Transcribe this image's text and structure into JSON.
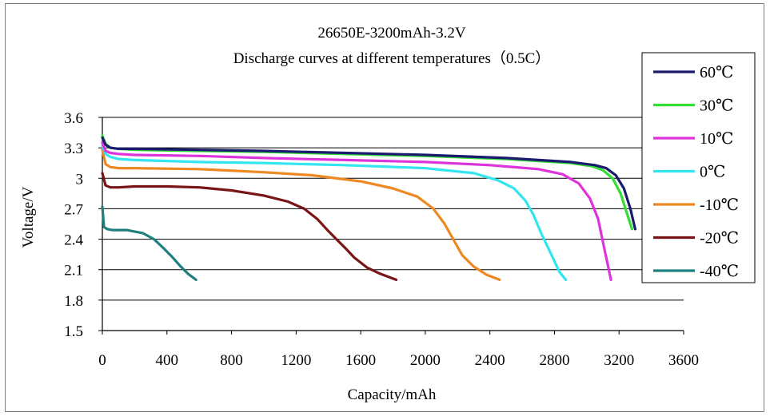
{
  "chart_data": {
    "type": "line",
    "title": "26650E-3200mAh-3.2V",
    "subtitle": "Discharge curves at different temperatures（0.5C）",
    "xlabel": "Capacity/mAh",
    "ylabel": "Voltage/V",
    "xlim": [
      0,
      3600
    ],
    "ylim": [
      1.5,
      3.6
    ],
    "xticks": [
      "0",
      "400",
      "800",
      "1200",
      "1600",
      "2000",
      "2400",
      "2800",
      "3200",
      "3600"
    ],
    "yticks": [
      "1.5",
      "1.8",
      "2.1",
      "2.4",
      "2.7",
      "3",
      "3.3",
      "3.6"
    ],
    "grid": "horizontal",
    "legend_position": "right",
    "series": [
      {
        "name": "60℃",
        "color": "#1a1a6e",
        "x": [
          0,
          20,
          50,
          100,
          200,
          600,
          1000,
          1500,
          2000,
          2500,
          2900,
          3050,
          3120,
          3180,
          3230,
          3270,
          3300
        ],
        "y": [
          3.4,
          3.33,
          3.3,
          3.29,
          3.29,
          3.28,
          3.27,
          3.25,
          3.23,
          3.2,
          3.16,
          3.13,
          3.1,
          3.03,
          2.9,
          2.7,
          2.5
        ]
      },
      {
        "name": "30℃",
        "color": "#33dd33",
        "x": [
          0,
          20,
          50,
          100,
          200,
          600,
          1000,
          1500,
          2000,
          2500,
          2900,
          3030,
          3100,
          3160,
          3210,
          3250,
          3280
        ],
        "y": [
          3.42,
          3.34,
          3.3,
          3.29,
          3.28,
          3.27,
          3.26,
          3.24,
          3.22,
          3.19,
          3.15,
          3.12,
          3.08,
          3.0,
          2.85,
          2.65,
          2.5
        ]
      },
      {
        "name": "10℃",
        "color": "#dd33dd",
        "x": [
          0,
          20,
          50,
          100,
          200,
          600,
          1000,
          1500,
          2000,
          2400,
          2700,
          2850,
          2950,
          3020,
          3070,
          3110,
          3150
        ],
        "y": [
          3.35,
          3.27,
          3.25,
          3.24,
          3.23,
          3.22,
          3.2,
          3.18,
          3.16,
          3.13,
          3.09,
          3.04,
          2.95,
          2.8,
          2.6,
          2.3,
          2.0
        ]
      },
      {
        "name": "0℃",
        "color": "#33e5f0",
        "x": [
          0,
          20,
          50,
          100,
          200,
          600,
          1000,
          1500,
          2000,
          2300,
          2450,
          2550,
          2620,
          2670,
          2720,
          2780,
          2830,
          2870
        ],
        "y": [
          3.32,
          3.24,
          3.21,
          3.19,
          3.18,
          3.16,
          3.15,
          3.13,
          3.1,
          3.05,
          2.98,
          2.9,
          2.78,
          2.64,
          2.45,
          2.25,
          2.08,
          2.0
        ]
      },
      {
        "name": "-10℃",
        "color": "#ee8822",
        "x": [
          0,
          20,
          50,
          100,
          200,
          600,
          1000,
          1300,
          1600,
          1800,
          1950,
          2050,
          2120,
          2180,
          2230,
          2300,
          2380,
          2460
        ],
        "y": [
          3.28,
          3.14,
          3.11,
          3.1,
          3.1,
          3.09,
          3.06,
          3.03,
          2.97,
          2.9,
          2.82,
          2.7,
          2.55,
          2.38,
          2.24,
          2.13,
          2.05,
          2.0
        ]
      },
      {
        "name": "-20℃",
        "color": "#7a1515",
        "x": [
          0,
          20,
          50,
          100,
          200,
          400,
          600,
          800,
          1000,
          1150,
          1250,
          1330,
          1400,
          1450,
          1500,
          1560,
          1640,
          1720,
          1820
        ],
        "y": [
          3.05,
          2.93,
          2.91,
          2.91,
          2.92,
          2.92,
          2.91,
          2.88,
          2.83,
          2.77,
          2.7,
          2.6,
          2.48,
          2.4,
          2.32,
          2.22,
          2.12,
          2.06,
          2.0
        ]
      },
      {
        "name": "-40℃",
        "color": "#1f7f7f",
        "x": [
          0,
          10,
          30,
          60,
          150,
          250,
          320,
          380,
          430,
          480,
          530,
          580
        ],
        "y": [
          2.72,
          2.52,
          2.5,
          2.49,
          2.49,
          2.46,
          2.4,
          2.31,
          2.23,
          2.14,
          2.06,
          2.0
        ]
      }
    ]
  }
}
